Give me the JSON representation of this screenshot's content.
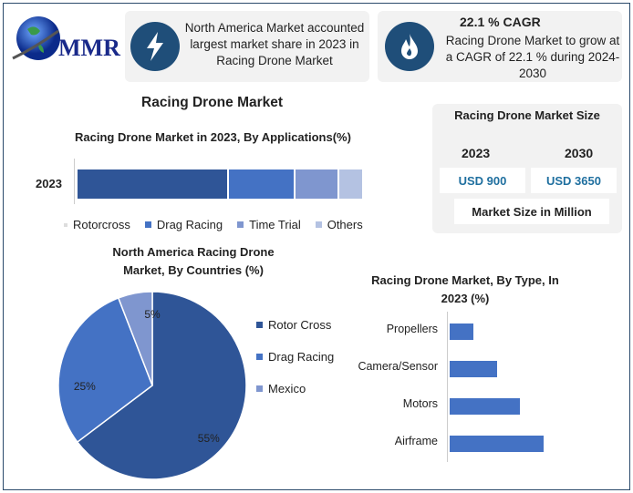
{
  "logo": {
    "text": "MMR"
  },
  "card1": {
    "text": "North America Market accounted largest market share in 2023 in Racing Drone Market",
    "icon": "lightning-icon"
  },
  "card2": {
    "title": "22.1 % CAGR",
    "text": "Racing Drone Market to grow at a CAGR of 22.1 % during 2024-2030",
    "icon": "flame-icon"
  },
  "main_title": "Racing Drone Market",
  "size_panel": {
    "title": "Racing Drone Market Size",
    "years": [
      "2023",
      "2030"
    ],
    "values": [
      "USD 900",
      "USD 3650"
    ],
    "unit": "Market Size in Million"
  },
  "colors": {
    "dark": "#2f5597",
    "mid": "#4472c4",
    "light": "#7f96cf",
    "pale": "#b4c2e2",
    "navy": "#1f4e79"
  },
  "chart_data": [
    {
      "type": "bar",
      "orientation": "horizontal-stacked",
      "title": "Racing Drone Market in 2023, By Applications(%)",
      "categories": [
        "2023"
      ],
      "series": [
        {
          "name": "Rotorcross",
          "values": [
            53
          ]
        },
        {
          "name": "Drag Racing",
          "values": [
            23
          ]
        },
        {
          "name": "Time Trial",
          "values": [
            15
          ]
        },
        {
          "name": "Others",
          "values": [
            8
          ]
        }
      ],
      "legend": "bottom"
    },
    {
      "type": "pie",
      "title": "North America Racing Drone Market, By Countries (%)",
      "labels": [
        "Rotor Cross",
        "Drag Racing",
        "Mexico"
      ],
      "values": [
        55,
        25,
        5
      ],
      "data_labels": [
        "55%",
        "25%",
        "5%"
      ],
      "legend": "right"
    },
    {
      "type": "bar",
      "orientation": "horizontal",
      "title": "Racing Drone Market, By Type, In 2023 (%)",
      "categories": [
        "Propellers",
        "Camera/Sensor",
        "Motors",
        "Airframe"
      ],
      "values": [
        10,
        20,
        30,
        40
      ]
    }
  ]
}
